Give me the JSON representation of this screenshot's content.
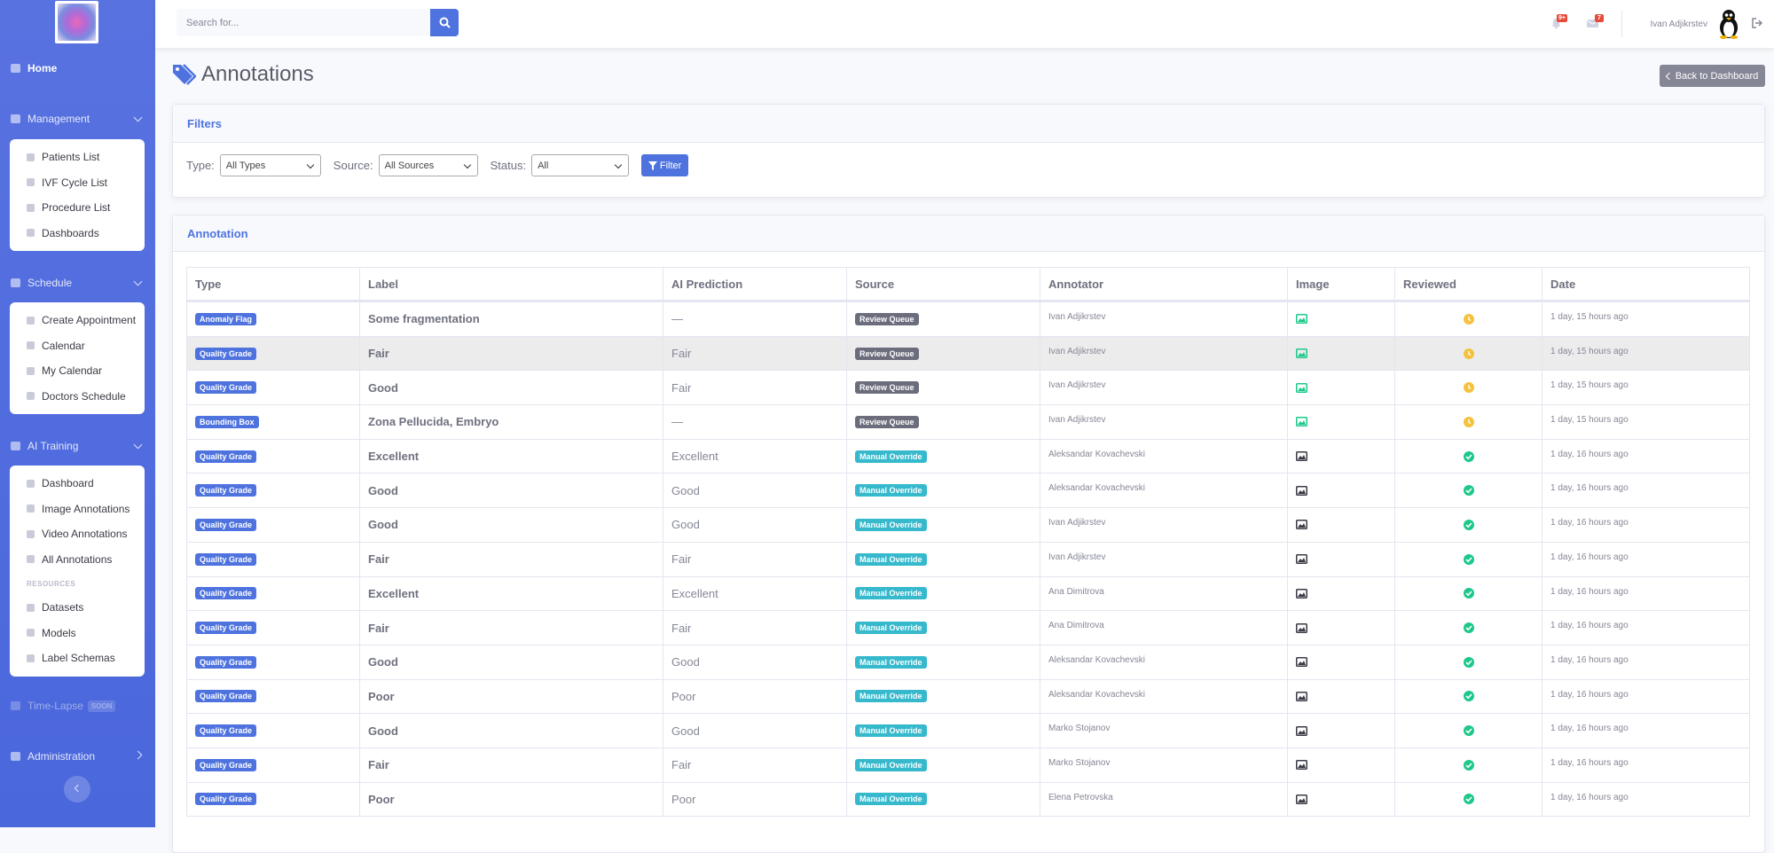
{
  "sidebar": {
    "home": "Home",
    "sections": [
      {
        "title": "Management",
        "items": [
          "Patients List",
          "IVF Cycle List",
          "Procedure List",
          "Dashboards"
        ]
      },
      {
        "title": "Schedule",
        "items": [
          "Create Appointment",
          "Calendar",
          "My Calendar",
          "Doctors Schedule"
        ]
      },
      {
        "title": "AI Training",
        "items": [
          "Dashboard",
          "Image Annotations",
          "Video Annotations",
          "All Annotations"
        ],
        "subheading": "RESOURCES",
        "sub_items": [
          "Datasets",
          "Models",
          "Label Schemas"
        ]
      }
    ],
    "time_lapse": "Time-Lapse",
    "soon": "SOON",
    "administration": "Administration"
  },
  "topbar": {
    "search_placeholder": "Search for...",
    "alerts": "9+",
    "messages": "7",
    "user": "Ivan Adjikrstev"
  },
  "page": {
    "title": "Annotations",
    "back": "Back to Dashboard"
  },
  "filters": {
    "title": "Filters",
    "type_label": "Type:",
    "type_value": "All Types",
    "source_label": "Source:",
    "source_value": "All Sources",
    "status_label": "Status:",
    "status_value": "All",
    "button": "Filter"
  },
  "table": {
    "title": "Annotation",
    "columns": [
      "Type",
      "Label",
      "AI Prediction",
      "Source",
      "Annotator",
      "Image",
      "Reviewed",
      "Date"
    ],
    "rows": [
      {
        "type": "Anomaly Flag",
        "label": "Some fragmentation",
        "ai_prediction": "—",
        "source": "Review Queue",
        "annotator": "Ivan Adjikrstev",
        "reviewed": false,
        "date": "1 day, 15 hours ago"
      },
      {
        "type": "Quality Grade",
        "label": "Fair",
        "ai_prediction": "Fair",
        "source": "Review Queue",
        "annotator": "Ivan Adjikrstev",
        "reviewed": false,
        "date": "1 day, 15 hours ago"
      },
      {
        "type": "Quality Grade",
        "label": "Good",
        "ai_prediction": "Fair",
        "source": "Review Queue",
        "annotator": "Ivan Adjikrstev",
        "reviewed": false,
        "date": "1 day, 15 hours ago"
      },
      {
        "type": "Bounding Box",
        "label": "Zona Pellucida, Embryo",
        "ai_prediction": "—",
        "source": "Review Queue",
        "annotator": "Ivan Adjikrstev",
        "reviewed": false,
        "date": "1 day, 15 hours ago"
      },
      {
        "type": "Quality Grade",
        "label": "Excellent",
        "ai_prediction": "Excellent",
        "source": "Manual Override",
        "annotator": "Aleksandar Kovachevski",
        "reviewed": true,
        "date": "1 day, 16 hours ago"
      },
      {
        "type": "Quality Grade",
        "label": "Good",
        "ai_prediction": "Good",
        "source": "Manual Override",
        "annotator": "Aleksandar Kovachevski",
        "reviewed": true,
        "date": "1 day, 16 hours ago"
      },
      {
        "type": "Quality Grade",
        "label": "Good",
        "ai_prediction": "Good",
        "source": "Manual Override",
        "annotator": "Ivan Adjikrstev",
        "reviewed": true,
        "date": "1 day, 16 hours ago"
      },
      {
        "type": "Quality Grade",
        "label": "Fair",
        "ai_prediction": "Fair",
        "source": "Manual Override",
        "annotator": "Ivan Adjikrstev",
        "reviewed": true,
        "date": "1 day, 16 hours ago"
      },
      {
        "type": "Quality Grade",
        "label": "Excellent",
        "ai_prediction": "Excellent",
        "source": "Manual Override",
        "annotator": "Ana Dimitrova",
        "reviewed": true,
        "date": "1 day, 16 hours ago"
      },
      {
        "type": "Quality Grade",
        "label": "Fair",
        "ai_prediction": "Fair",
        "source": "Manual Override",
        "annotator": "Ana Dimitrova",
        "reviewed": true,
        "date": "1 day, 16 hours ago"
      },
      {
        "type": "Quality Grade",
        "label": "Good",
        "ai_prediction": "Good",
        "source": "Manual Override",
        "annotator": "Aleksandar Kovachevski",
        "reviewed": true,
        "date": "1 day, 16 hours ago"
      },
      {
        "type": "Quality Grade",
        "label": "Poor",
        "ai_prediction": "Poor",
        "source": "Manual Override",
        "annotator": "Aleksandar Kovachevski",
        "reviewed": true,
        "date": "1 day, 16 hours ago"
      },
      {
        "type": "Quality Grade",
        "label": "Good",
        "ai_prediction": "Good",
        "source": "Manual Override",
        "annotator": "Marko Stojanov",
        "reviewed": true,
        "date": "1 day, 16 hours ago"
      },
      {
        "type": "Quality Grade",
        "label": "Fair",
        "ai_prediction": "Fair",
        "source": "Manual Override",
        "annotator": "Marko Stojanov",
        "reviewed": true,
        "date": "1 day, 16 hours ago"
      },
      {
        "type": "Quality Grade",
        "label": "Poor",
        "ai_prediction": "Poor",
        "source": "Manual Override",
        "annotator": "Elena Petrovska",
        "reviewed": true,
        "date": "1 day, 16 hours ago"
      }
    ]
  }
}
